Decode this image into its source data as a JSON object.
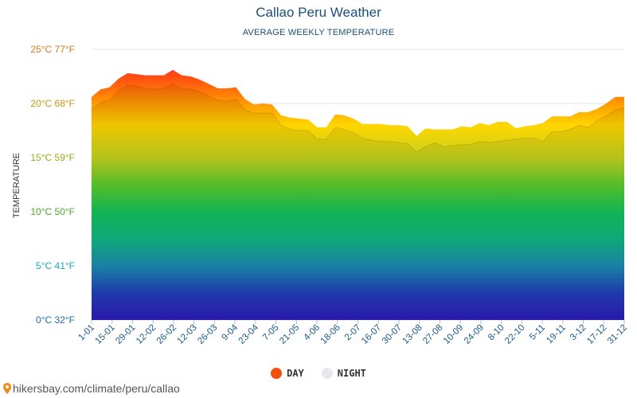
{
  "chart_data": {
    "type": "area",
    "title": "Callao Peru Weather",
    "subtitle": "AVERAGE WEEKLY TEMPERATURE",
    "ylabel": "TEMPERATURE",
    "ylim": [
      0,
      25
    ],
    "y_ticks": [
      {
        "value": 0,
        "label": "0°C 32°F",
        "color": "#1a6fa8"
      },
      {
        "value": 5,
        "label": "5°C 41°F",
        "color": "#1aa9c0"
      },
      {
        "value": 10,
        "label": "10°C 50°F",
        "color": "#4aa82e"
      },
      {
        "value": 15,
        "label": "15°C 59°F",
        "color": "#9aab1a"
      },
      {
        "value": 20,
        "label": "20°C 68°F",
        "color": "#c79a10"
      },
      {
        "value": 25,
        "label": "25°C 77°F",
        "color": "#d9771a"
      }
    ],
    "x_labels": [
      "1-01",
      "15-01",
      "29-01",
      "12-02",
      "26-02",
      "12-03",
      "26-03",
      "9-04",
      "23-04",
      "7-05",
      "21-05",
      "4-06",
      "18-06",
      "2-07",
      "16-07",
      "30-07",
      "13-08",
      "27-08",
      "10-09",
      "24-09",
      "8-10",
      "22-10",
      "5-11",
      "19-11",
      "3-12",
      "17-12",
      "31-12"
    ],
    "series": [
      {
        "name": "DAY",
        "color": "#f0500a",
        "values": [
          20.6,
          21.3,
          21.5,
          22.3,
          22.8,
          22.7,
          22.6,
          22.6,
          22.6,
          23.1,
          22.6,
          22.5,
          22.2,
          21.8,
          21.4,
          21.4,
          21.5,
          20.4,
          19.9,
          20.0,
          19.9,
          18.9,
          18.7,
          18.6,
          18.5,
          17.8,
          17.8,
          19.0,
          18.9,
          18.6,
          18.1,
          18.1,
          18.1,
          18.0,
          18.0,
          17.9,
          17.0,
          17.7,
          17.6,
          17.6,
          17.6,
          17.9,
          17.8,
          18.2,
          18.0,
          18.3,
          18.3,
          17.7,
          17.9,
          18.0,
          18.2,
          18.8,
          18.8,
          18.8,
          19.2,
          19.2,
          19.5,
          20.0,
          20.6,
          20.6
        ],
        "night": [
          19.4,
          20.1,
          20.3,
          21.2,
          21.7,
          21.6,
          21.4,
          21.3,
          21.4,
          21.8,
          21.4,
          21.3,
          21.1,
          20.7,
          20.3,
          20.2,
          20.4,
          19.4,
          19.1,
          19.1,
          19.1,
          18.0,
          17.6,
          17.5,
          17.5,
          16.7,
          16.7,
          17.8,
          17.6,
          17.3,
          16.8,
          16.6,
          16.5,
          16.5,
          16.4,
          16.3,
          15.5,
          16.0,
          16.4,
          16.0,
          16.1,
          16.2,
          16.2,
          16.5,
          16.4,
          16.5,
          16.6,
          16.7,
          16.8,
          16.8,
          16.5,
          17.4,
          17.4,
          17.6,
          18.0,
          17.8,
          18.4,
          18.9,
          19.4,
          19.6
        ]
      },
      {
        "name": "NIGHT",
        "color": "#e6e8ec"
      }
    ]
  },
  "footer": {
    "text": "hikersbay.com/climate/peru/callao"
  }
}
